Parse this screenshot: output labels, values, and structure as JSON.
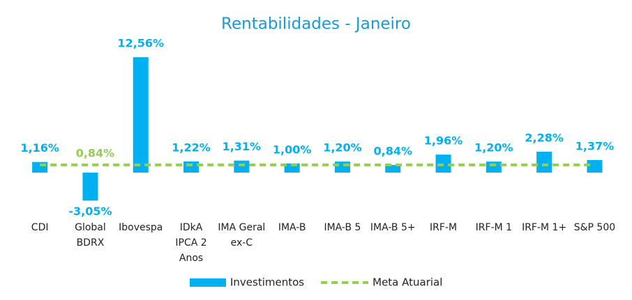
{
  "chart_data": {
    "type": "bar-line",
    "title": "Rentabilidades - Janeiro",
    "categories": [
      "CDI",
      "Global BDRX",
      "Ibovespa",
      "IDkA IPCA 2 Anos",
      "IMA Geral ex-C",
      "IMA-B",
      "IMA-B 5",
      "IMA-B 5+",
      "IRF-M",
      "IRF-M 1",
      "IRF-M 1+",
      "S&P 500"
    ],
    "ylim": [
      -4,
      13
    ],
    "series": [
      {
        "name": "Investimentos",
        "type": "bar",
        "color": "#00b0f0",
        "values": [
          1.16,
          -3.05,
          12.56,
          1.22,
          1.31,
          1.0,
          1.2,
          0.84,
          1.96,
          1.2,
          2.28,
          1.37
        ],
        "value_labels": [
          "1,16%",
          "-3,05%",
          "12,56%",
          "1,22%",
          "1,31%",
          "1,00%",
          "1,20%",
          "0,84%",
          "1,96%",
          "1,20%",
          "2,28%",
          "1,37%"
        ]
      },
      {
        "name": "Meta Atuarial",
        "type": "line",
        "color": "#92d050",
        "values": [
          0.84,
          0.84,
          0.84,
          0.84,
          0.84,
          0.84,
          0.84,
          0.84,
          0.84,
          0.84,
          0.84,
          0.84
        ],
        "value_labels": [
          null,
          "0,84%",
          null,
          null,
          null,
          null,
          null,
          null,
          null,
          null,
          null,
          null
        ]
      }
    ]
  }
}
